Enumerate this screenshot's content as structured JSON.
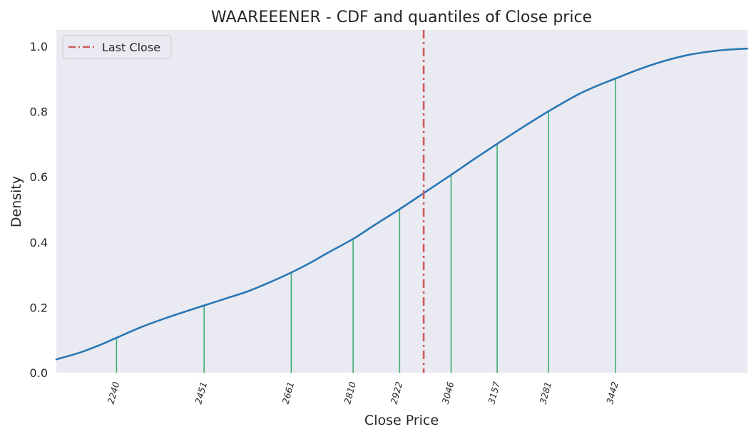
{
  "chart_data": {
    "type": "line",
    "title": "WAAREEENER - CDF and quantiles of Close price",
    "xlabel": "Close Price",
    "ylabel": "Density",
    "xlim": [
      2095,
      3760
    ],
    "ylim": [
      0.0,
      1.05
    ],
    "yticks": [
      0.0,
      0.2,
      0.4,
      0.6,
      0.8,
      1.0
    ],
    "ytick_labels": [
      "0.0",
      "0.2",
      "0.4",
      "0.6",
      "0.8",
      "1.0"
    ],
    "grid": false,
    "legend_position": "top-left",
    "colors": {
      "background": "#EAEAF2",
      "cdf_line": "#2A77B4",
      "quantile_lines": "#3DAE72",
      "last_close": "#CD5C5C"
    },
    "series": [
      {
        "values": [
          [
            2095,
            0.041
          ],
          [
            2150,
            0.061
          ],
          [
            2200,
            0.085
          ],
          [
            2240,
            0.107
          ],
          [
            2300,
            0.14
          ],
          [
            2360,
            0.168
          ],
          [
            2400,
            0.185
          ],
          [
            2451,
            0.206
          ],
          [
            2500,
            0.226
          ],
          [
            2560,
            0.251
          ],
          [
            2620,
            0.283
          ],
          [
            2661,
            0.307
          ],
          [
            2700,
            0.332
          ],
          [
            2750,
            0.368
          ],
          [
            2810,
            0.41
          ],
          [
            2860,
            0.451
          ],
          [
            2922,
            0.501
          ],
          [
            2980,
            0.55
          ],
          [
            3046,
            0.606
          ],
          [
            3100,
            0.653
          ],
          [
            3157,
            0.701
          ],
          [
            3220,
            0.753
          ],
          [
            3281,
            0.801
          ],
          [
            3350,
            0.851
          ],
          [
            3400,
            0.88
          ],
          [
            3442,
            0.901
          ],
          [
            3500,
            0.93
          ],
          [
            3560,
            0.955
          ],
          [
            3620,
            0.974
          ],
          [
            3690,
            0.987
          ],
          [
            3760,
            0.993
          ]
        ]
      }
    ],
    "quantiles": [
      {
        "x": 2240,
        "label": "2240",
        "y": 0.107
      },
      {
        "x": 2451,
        "label": "2451",
        "y": 0.206
      },
      {
        "x": 2661,
        "label": "2661",
        "y": 0.307
      },
      {
        "x": 2810,
        "label": "2810",
        "y": 0.41
      },
      {
        "x": 2922,
        "label": "2922",
        "y": 0.501
      },
      {
        "x": 3046,
        "label": "3046",
        "y": 0.606
      },
      {
        "x": 3157,
        "label": "3157",
        "y": 0.701
      },
      {
        "x": 3281,
        "label": "3281",
        "y": 0.801
      },
      {
        "x": 3442,
        "label": "3442",
        "y": 0.901
      }
    ],
    "last_close": {
      "x": 2980,
      "legend_label": "Last Close"
    }
  }
}
